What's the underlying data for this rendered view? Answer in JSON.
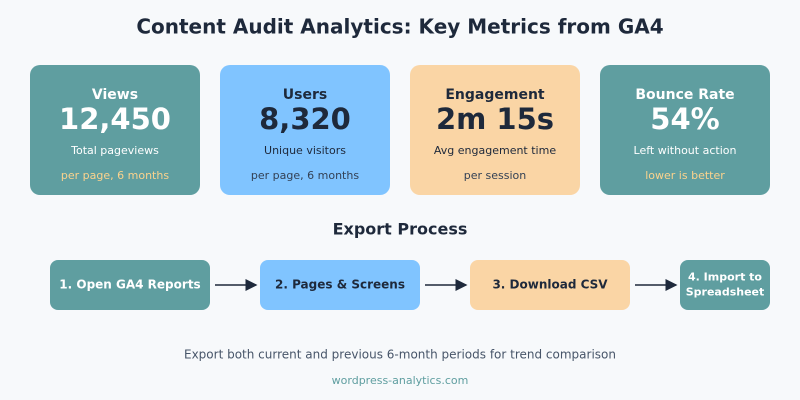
{
  "title": "Content Audit Analytics: Key Metrics from GA4",
  "cards": [
    {
      "label": "Views",
      "value": "12,450",
      "description": "Total pageviews",
      "note": "per page, 6 months"
    },
    {
      "label": "Users",
      "value": "8,320",
      "description": "Unique visitors",
      "note": "per page, 6 months"
    },
    {
      "label": "Engagement",
      "value": "2m 15s",
      "description": "Avg engagement time",
      "note": "per session"
    },
    {
      "label": "Bounce Rate",
      "value": "54%",
      "description": "Left without action",
      "note": "lower is better"
    }
  ],
  "process": {
    "title": "Export Process",
    "steps": [
      {
        "lines": [
          "1. Open GA4 Reports"
        ]
      },
      {
        "lines": [
          "2. Pages & Screens"
        ]
      },
      {
        "lines": [
          "3. Download CSV"
        ]
      },
      {
        "lines": [
          "4. Import to",
          "Spreadsheet"
        ]
      }
    ]
  },
  "footer": {
    "note": "Export both current and previous 6-month periods for trend comparison",
    "source": "wordpress-analytics.com"
  }
}
